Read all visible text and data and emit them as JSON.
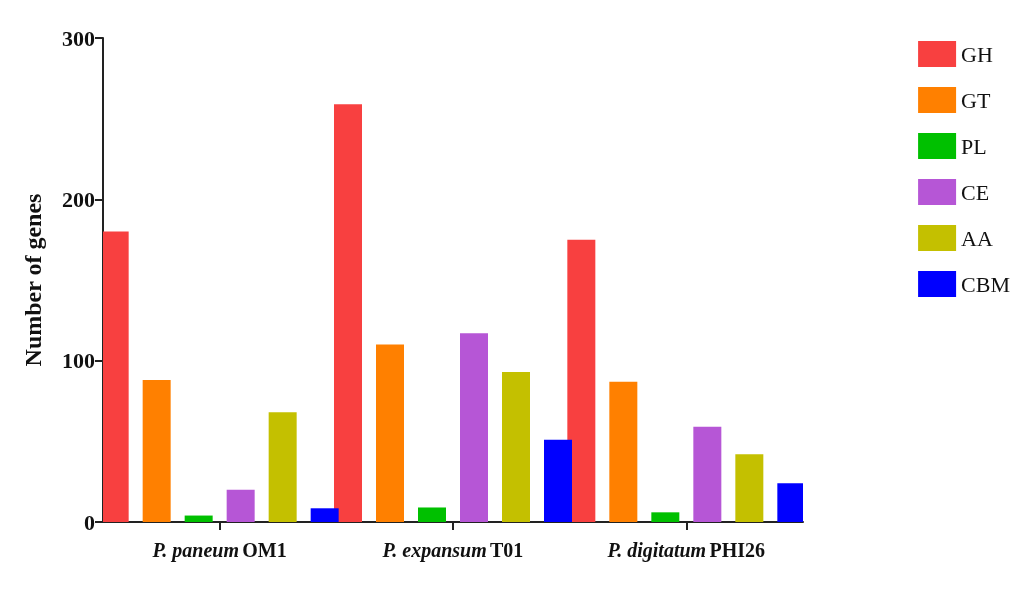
{
  "chart_data": {
    "type": "bar",
    "ylabel": "Number of genes",
    "categories": [
      "P. paneum OM1",
      "P. expansum T01",
      "P. digitatum PHI26"
    ],
    "series": [
      {
        "name": "GH",
        "color": "#f84040",
        "values": [
          180,
          259,
          175
        ]
      },
      {
        "name": "GT",
        "color": "#ff8000",
        "values": [
          88,
          110,
          87
        ]
      },
      {
        "name": "PL",
        "color": "#00c000",
        "values": [
          4,
          9,
          6
        ]
      },
      {
        "name": "CE",
        "color": "#b656d6",
        "values": [
          20,
          117,
          59
        ]
      },
      {
        "name": "AA",
        "color": "#c4c000",
        "values": [
          68,
          93,
          42
        ]
      },
      {
        "name": "CBM",
        "color": "#0000ff",
        "values": [
          8.5,
          51,
          24
        ]
      }
    ],
    "ylim": [
      0,
      300
    ],
    "yticks": [
      0,
      100,
      200,
      300
    ],
    "grid": false,
    "legend": "right"
  }
}
